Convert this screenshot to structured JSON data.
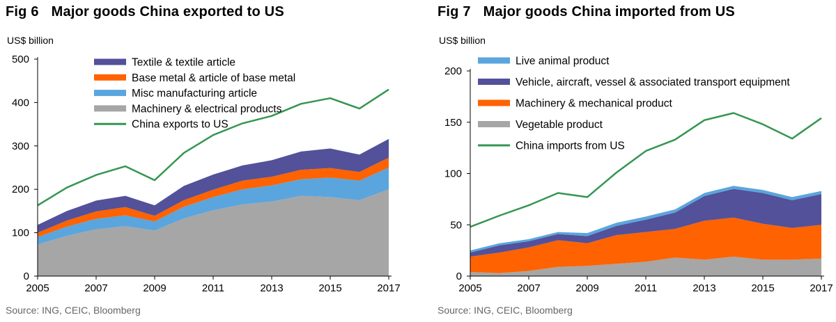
{
  "chart_data": [
    {
      "type": "area",
      "fig_label": "Fig 6",
      "title": "Major goods China exported to US",
      "ylabel": "US$ billion",
      "source": "Source: ING, CEIC, Bloomberg",
      "ylim": [
        0,
        500
      ],
      "yticks": [
        "0",
        "100",
        "200",
        "300",
        "400",
        "500"
      ],
      "xlim": [
        2005,
        2017
      ],
      "xticks": [
        "2005",
        "2007",
        "2009",
        "2011",
        "2013",
        "2015",
        "2017"
      ],
      "x": [
        2005,
        2006,
        2007,
        2008,
        2009,
        2010,
        2011,
        2012,
        2013,
        2014,
        2015,
        2016,
        2017
      ],
      "legend_position": "top-right",
      "stacked_series": [
        {
          "name": "Machinery & electrical products",
          "color": "#a6a6a6",
          "values": [
            73,
            93,
            108,
            115,
            105,
            133,
            152,
            165,
            172,
            185,
            182,
            175,
            200
          ]
        },
        {
          "name": "Misc manufacturing article",
          "color": "#5aa5de",
          "values": [
            17,
            21,
            24,
            25,
            21,
            27,
            30,
            35,
            37,
            38,
            45,
            45,
            50
          ]
        },
        {
          "name": "Base metal & article of base metal",
          "color": "#ff6200",
          "values": [
            10,
            14,
            17,
            19,
            13,
            15,
            17,
            20,
            20,
            22,
            22,
            20,
            23
          ]
        },
        {
          "name": "Textile & textile article",
          "color": "#525199",
          "values": [
            18,
            22,
            25,
            26,
            24,
            33,
            35,
            35,
            38,
            42,
            45,
            40,
            43
          ]
        }
      ],
      "line_series": {
        "name": "China exports to US",
        "color": "#349651",
        "values": [
          163,
          204,
          233,
          253,
          221,
          284,
          325,
          352,
          369,
          397,
          410,
          386,
          430
        ]
      },
      "legend_order": [
        "Textile & textile article",
        "Base metal & article of base metal",
        "Misc manufacturing article",
        "Machinery & electrical products",
        "China exports to US"
      ]
    },
    {
      "type": "area",
      "fig_label": "Fig 7",
      "title": "Major goods China imported from US",
      "ylabel": "US$ billion",
      "source": "Source: ING, CEIC, Bloomberg",
      "ylim": [
        0,
        200
      ],
      "yticks": [
        "0",
        "50",
        "100",
        "150",
        "200"
      ],
      "xlim": [
        2005,
        2017
      ],
      "xticks": [
        "2005",
        "2007",
        "2009",
        "2011",
        "2013",
        "2015",
        "2017"
      ],
      "x": [
        2005,
        2006,
        2007,
        2008,
        2009,
        2010,
        2011,
        2012,
        2013,
        2014,
        2015,
        2016,
        2017
      ],
      "legend_position": "top",
      "stacked_series": [
        {
          "name": "Vegetable product",
          "color": "#a6a6a6",
          "values": [
            4,
            3,
            5,
            9,
            10,
            12,
            14,
            18,
            16,
            19,
            16,
            16,
            17
          ]
        },
        {
          "name": "Machinery & mechanical product",
          "color": "#ff6200",
          "values": [
            15,
            20,
            23,
            26,
            22,
            28,
            29,
            28,
            38,
            38,
            35,
            31,
            33
          ]
        },
        {
          "name": "Vehicle, aircraft, vessel & associated transport equipment",
          "color": "#525199",
          "values": [
            4,
            7,
            6,
            6,
            7,
            9,
            12,
            16,
            24,
            28,
            30,
            27,
            30
          ]
        },
        {
          "name": "Live animal product",
          "color": "#5aa5de",
          "values": [
            2,
            2,
            2,
            2,
            3,
            3,
            3,
            3,
            3,
            3,
            3,
            3,
            3
          ]
        }
      ],
      "line_series": {
        "name": "China imports from US",
        "color": "#349651",
        "values": [
          48,
          59,
          69,
          81,
          77,
          101,
          122,
          133,
          152,
          159,
          148,
          134,
          154
        ]
      },
      "legend_order": [
        "Live animal product",
        "Vehicle, aircraft, vessel & associated transport equipment",
        "Machinery & mechanical product",
        "Vegetable product",
        "China imports from US"
      ]
    }
  ]
}
